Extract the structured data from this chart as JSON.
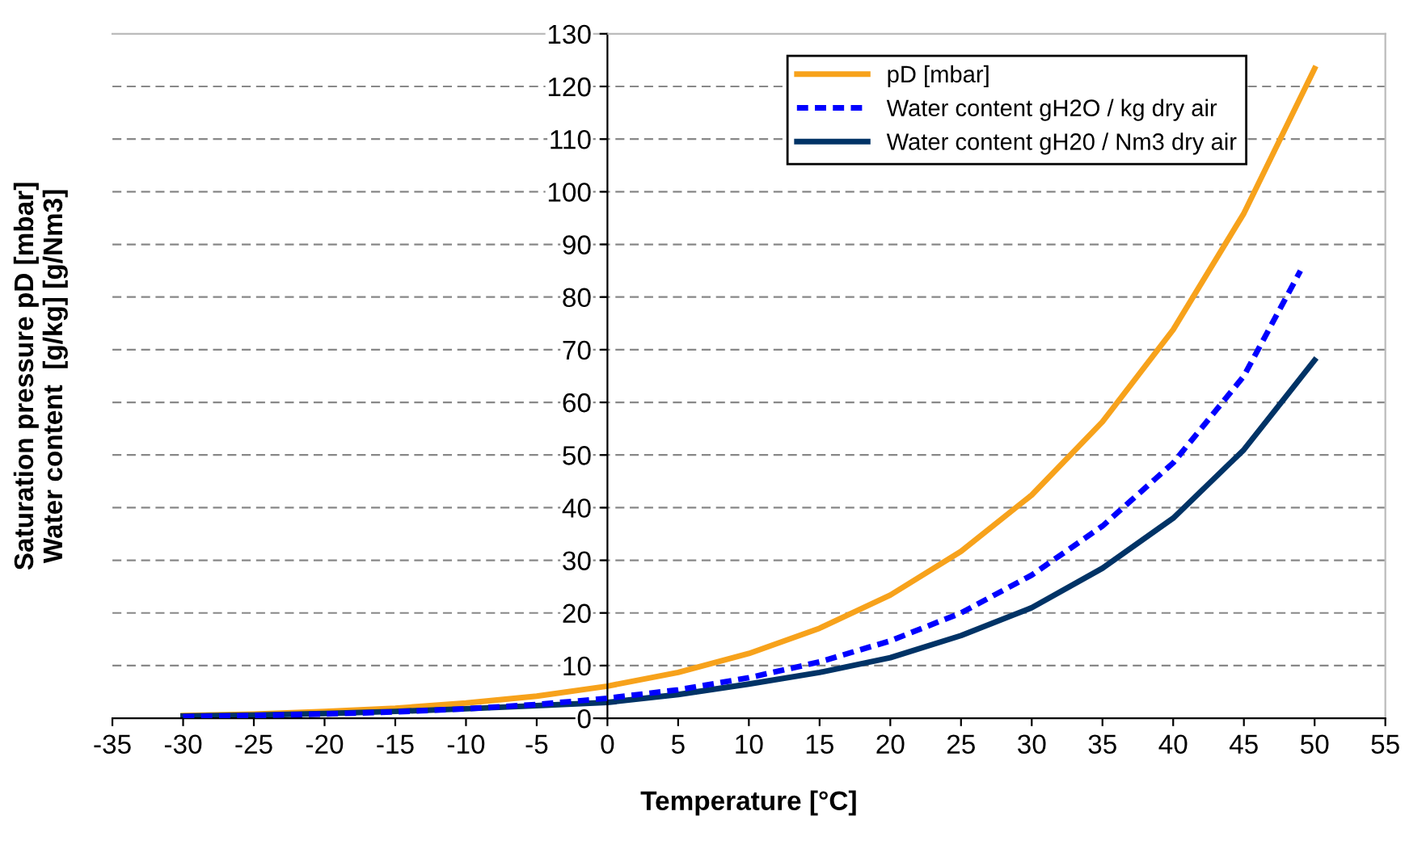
{
  "chart_data": {
    "type": "line",
    "xlabel": "Temperature [°C]",
    "ylabel": "Saturation pressure pD [mbar]\nWater content  [g/kg] [g/Nm3]",
    "xlim": [
      -35,
      55
    ],
    "xticks": [
      -35,
      -30,
      -25,
      -20,
      -15,
      -10,
      -5,
      0,
      5,
      10,
      15,
      20,
      25,
      30,
      35,
      40,
      45,
      50,
      55
    ],
    "ylim": [
      0,
      130
    ],
    "yticks": [
      0,
      10,
      20,
      30,
      40,
      50,
      60,
      70,
      80,
      90,
      100,
      110,
      120,
      130
    ],
    "grid": "y",
    "legend": "top right",
    "marker": "none",
    "series": [
      {
        "name": "pD [mbar]",
        "color": "#f7a21b",
        "line_style": "solid",
        "x": [
          -30,
          -25,
          -20,
          -15,
          -10,
          -5,
          0,
          5,
          10,
          15,
          20,
          25,
          30,
          35,
          40,
          45,
          50
        ],
        "values": [
          0.5,
          0.8,
          1.3,
          1.9,
          2.9,
          4.2,
          6.1,
          8.7,
          12.3,
          17.1,
          23.4,
          31.7,
          42.4,
          56.3,
          73.8,
          95.9,
          123.4
        ]
      },
      {
        "name": "Water content gH2O / kg dry air",
        "color": "#0000ff",
        "line_style": "dashed",
        "x": [
          -30,
          -25,
          -20,
          -15,
          -10,
          -5,
          0,
          5,
          10,
          15,
          20,
          25,
          30,
          35,
          40,
          45,
          49
        ],
        "values": [
          0.3,
          0.5,
          0.8,
          1.2,
          1.8,
          2.6,
          3.8,
          5.4,
          7.7,
          10.7,
          14.7,
          20.0,
          27.2,
          36.5,
          48.5,
          65,
          85
        ]
      },
      {
        "name": "Water content gH20 / Nm3 dry air",
        "color": "#003366",
        "line_style": "solid",
        "x": [
          -30,
          -25,
          -20,
          -15,
          -10,
          -5,
          0,
          5,
          10,
          15,
          20,
          25,
          30,
          35,
          40,
          45,
          50
        ],
        "values": [
          0.4,
          0.6,
          0.9,
          1.3,
          1.8,
          2.4,
          3.0,
          4.5,
          6.5,
          8.7,
          11.5,
          15.7,
          21.0,
          28.5,
          38.0,
          51.0,
          68.0
        ]
      }
    ]
  }
}
